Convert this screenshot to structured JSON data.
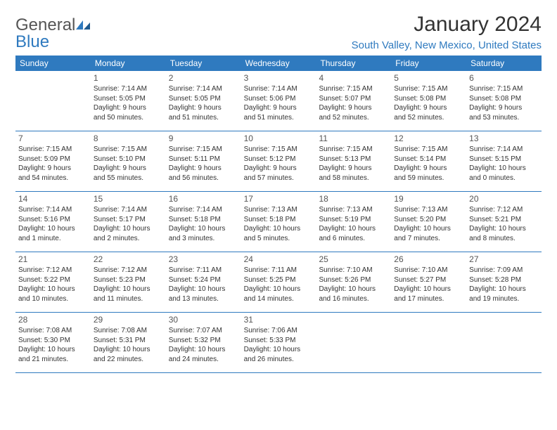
{
  "logo": {
    "text_general": "General",
    "text_blue": "Blue"
  },
  "header": {
    "month_title": "January 2024",
    "location": "South Valley, New Mexico, United States"
  },
  "colors": {
    "header_bg": "#2f7abf",
    "header_text": "#ffffff",
    "accent": "#2f7abf",
    "body_text": "#333333",
    "background": "#ffffff"
  },
  "weekdays": [
    "Sunday",
    "Monday",
    "Tuesday",
    "Wednesday",
    "Thursday",
    "Friday",
    "Saturday"
  ],
  "weeks": [
    [
      null,
      {
        "d": "1",
        "sr": "Sunrise: 7:14 AM",
        "ss": "Sunset: 5:05 PM",
        "dl1": "Daylight: 9 hours",
        "dl2": "and 50 minutes."
      },
      {
        "d": "2",
        "sr": "Sunrise: 7:14 AM",
        "ss": "Sunset: 5:05 PM",
        "dl1": "Daylight: 9 hours",
        "dl2": "and 51 minutes."
      },
      {
        "d": "3",
        "sr": "Sunrise: 7:14 AM",
        "ss": "Sunset: 5:06 PM",
        "dl1": "Daylight: 9 hours",
        "dl2": "and 51 minutes."
      },
      {
        "d": "4",
        "sr": "Sunrise: 7:15 AM",
        "ss": "Sunset: 5:07 PM",
        "dl1": "Daylight: 9 hours",
        "dl2": "and 52 minutes."
      },
      {
        "d": "5",
        "sr": "Sunrise: 7:15 AM",
        "ss": "Sunset: 5:08 PM",
        "dl1": "Daylight: 9 hours",
        "dl2": "and 52 minutes."
      },
      {
        "d": "6",
        "sr": "Sunrise: 7:15 AM",
        "ss": "Sunset: 5:08 PM",
        "dl1": "Daylight: 9 hours",
        "dl2": "and 53 minutes."
      }
    ],
    [
      {
        "d": "7",
        "sr": "Sunrise: 7:15 AM",
        "ss": "Sunset: 5:09 PM",
        "dl1": "Daylight: 9 hours",
        "dl2": "and 54 minutes."
      },
      {
        "d": "8",
        "sr": "Sunrise: 7:15 AM",
        "ss": "Sunset: 5:10 PM",
        "dl1": "Daylight: 9 hours",
        "dl2": "and 55 minutes."
      },
      {
        "d": "9",
        "sr": "Sunrise: 7:15 AM",
        "ss": "Sunset: 5:11 PM",
        "dl1": "Daylight: 9 hours",
        "dl2": "and 56 minutes."
      },
      {
        "d": "10",
        "sr": "Sunrise: 7:15 AM",
        "ss": "Sunset: 5:12 PM",
        "dl1": "Daylight: 9 hours",
        "dl2": "and 57 minutes."
      },
      {
        "d": "11",
        "sr": "Sunrise: 7:15 AM",
        "ss": "Sunset: 5:13 PM",
        "dl1": "Daylight: 9 hours",
        "dl2": "and 58 minutes."
      },
      {
        "d": "12",
        "sr": "Sunrise: 7:15 AM",
        "ss": "Sunset: 5:14 PM",
        "dl1": "Daylight: 9 hours",
        "dl2": "and 59 minutes."
      },
      {
        "d": "13",
        "sr": "Sunrise: 7:14 AM",
        "ss": "Sunset: 5:15 PM",
        "dl1": "Daylight: 10 hours",
        "dl2": "and 0 minutes."
      }
    ],
    [
      {
        "d": "14",
        "sr": "Sunrise: 7:14 AM",
        "ss": "Sunset: 5:16 PM",
        "dl1": "Daylight: 10 hours",
        "dl2": "and 1 minute."
      },
      {
        "d": "15",
        "sr": "Sunrise: 7:14 AM",
        "ss": "Sunset: 5:17 PM",
        "dl1": "Daylight: 10 hours",
        "dl2": "and 2 minutes."
      },
      {
        "d": "16",
        "sr": "Sunrise: 7:14 AM",
        "ss": "Sunset: 5:18 PM",
        "dl1": "Daylight: 10 hours",
        "dl2": "and 3 minutes."
      },
      {
        "d": "17",
        "sr": "Sunrise: 7:13 AM",
        "ss": "Sunset: 5:18 PM",
        "dl1": "Daylight: 10 hours",
        "dl2": "and 5 minutes."
      },
      {
        "d": "18",
        "sr": "Sunrise: 7:13 AM",
        "ss": "Sunset: 5:19 PM",
        "dl1": "Daylight: 10 hours",
        "dl2": "and 6 minutes."
      },
      {
        "d": "19",
        "sr": "Sunrise: 7:13 AM",
        "ss": "Sunset: 5:20 PM",
        "dl1": "Daylight: 10 hours",
        "dl2": "and 7 minutes."
      },
      {
        "d": "20",
        "sr": "Sunrise: 7:12 AM",
        "ss": "Sunset: 5:21 PM",
        "dl1": "Daylight: 10 hours",
        "dl2": "and 8 minutes."
      }
    ],
    [
      {
        "d": "21",
        "sr": "Sunrise: 7:12 AM",
        "ss": "Sunset: 5:22 PM",
        "dl1": "Daylight: 10 hours",
        "dl2": "and 10 minutes."
      },
      {
        "d": "22",
        "sr": "Sunrise: 7:12 AM",
        "ss": "Sunset: 5:23 PM",
        "dl1": "Daylight: 10 hours",
        "dl2": "and 11 minutes."
      },
      {
        "d": "23",
        "sr": "Sunrise: 7:11 AM",
        "ss": "Sunset: 5:24 PM",
        "dl1": "Daylight: 10 hours",
        "dl2": "and 13 minutes."
      },
      {
        "d": "24",
        "sr": "Sunrise: 7:11 AM",
        "ss": "Sunset: 5:25 PM",
        "dl1": "Daylight: 10 hours",
        "dl2": "and 14 minutes."
      },
      {
        "d": "25",
        "sr": "Sunrise: 7:10 AM",
        "ss": "Sunset: 5:26 PM",
        "dl1": "Daylight: 10 hours",
        "dl2": "and 16 minutes."
      },
      {
        "d": "26",
        "sr": "Sunrise: 7:10 AM",
        "ss": "Sunset: 5:27 PM",
        "dl1": "Daylight: 10 hours",
        "dl2": "and 17 minutes."
      },
      {
        "d": "27",
        "sr": "Sunrise: 7:09 AM",
        "ss": "Sunset: 5:28 PM",
        "dl1": "Daylight: 10 hours",
        "dl2": "and 19 minutes."
      }
    ],
    [
      {
        "d": "28",
        "sr": "Sunrise: 7:08 AM",
        "ss": "Sunset: 5:30 PM",
        "dl1": "Daylight: 10 hours",
        "dl2": "and 21 minutes."
      },
      {
        "d": "29",
        "sr": "Sunrise: 7:08 AM",
        "ss": "Sunset: 5:31 PM",
        "dl1": "Daylight: 10 hours",
        "dl2": "and 22 minutes."
      },
      {
        "d": "30",
        "sr": "Sunrise: 7:07 AM",
        "ss": "Sunset: 5:32 PM",
        "dl1": "Daylight: 10 hours",
        "dl2": "and 24 minutes."
      },
      {
        "d": "31",
        "sr": "Sunrise: 7:06 AM",
        "ss": "Sunset: 5:33 PM",
        "dl1": "Daylight: 10 hours",
        "dl2": "and 26 minutes."
      },
      null,
      null,
      null
    ]
  ]
}
